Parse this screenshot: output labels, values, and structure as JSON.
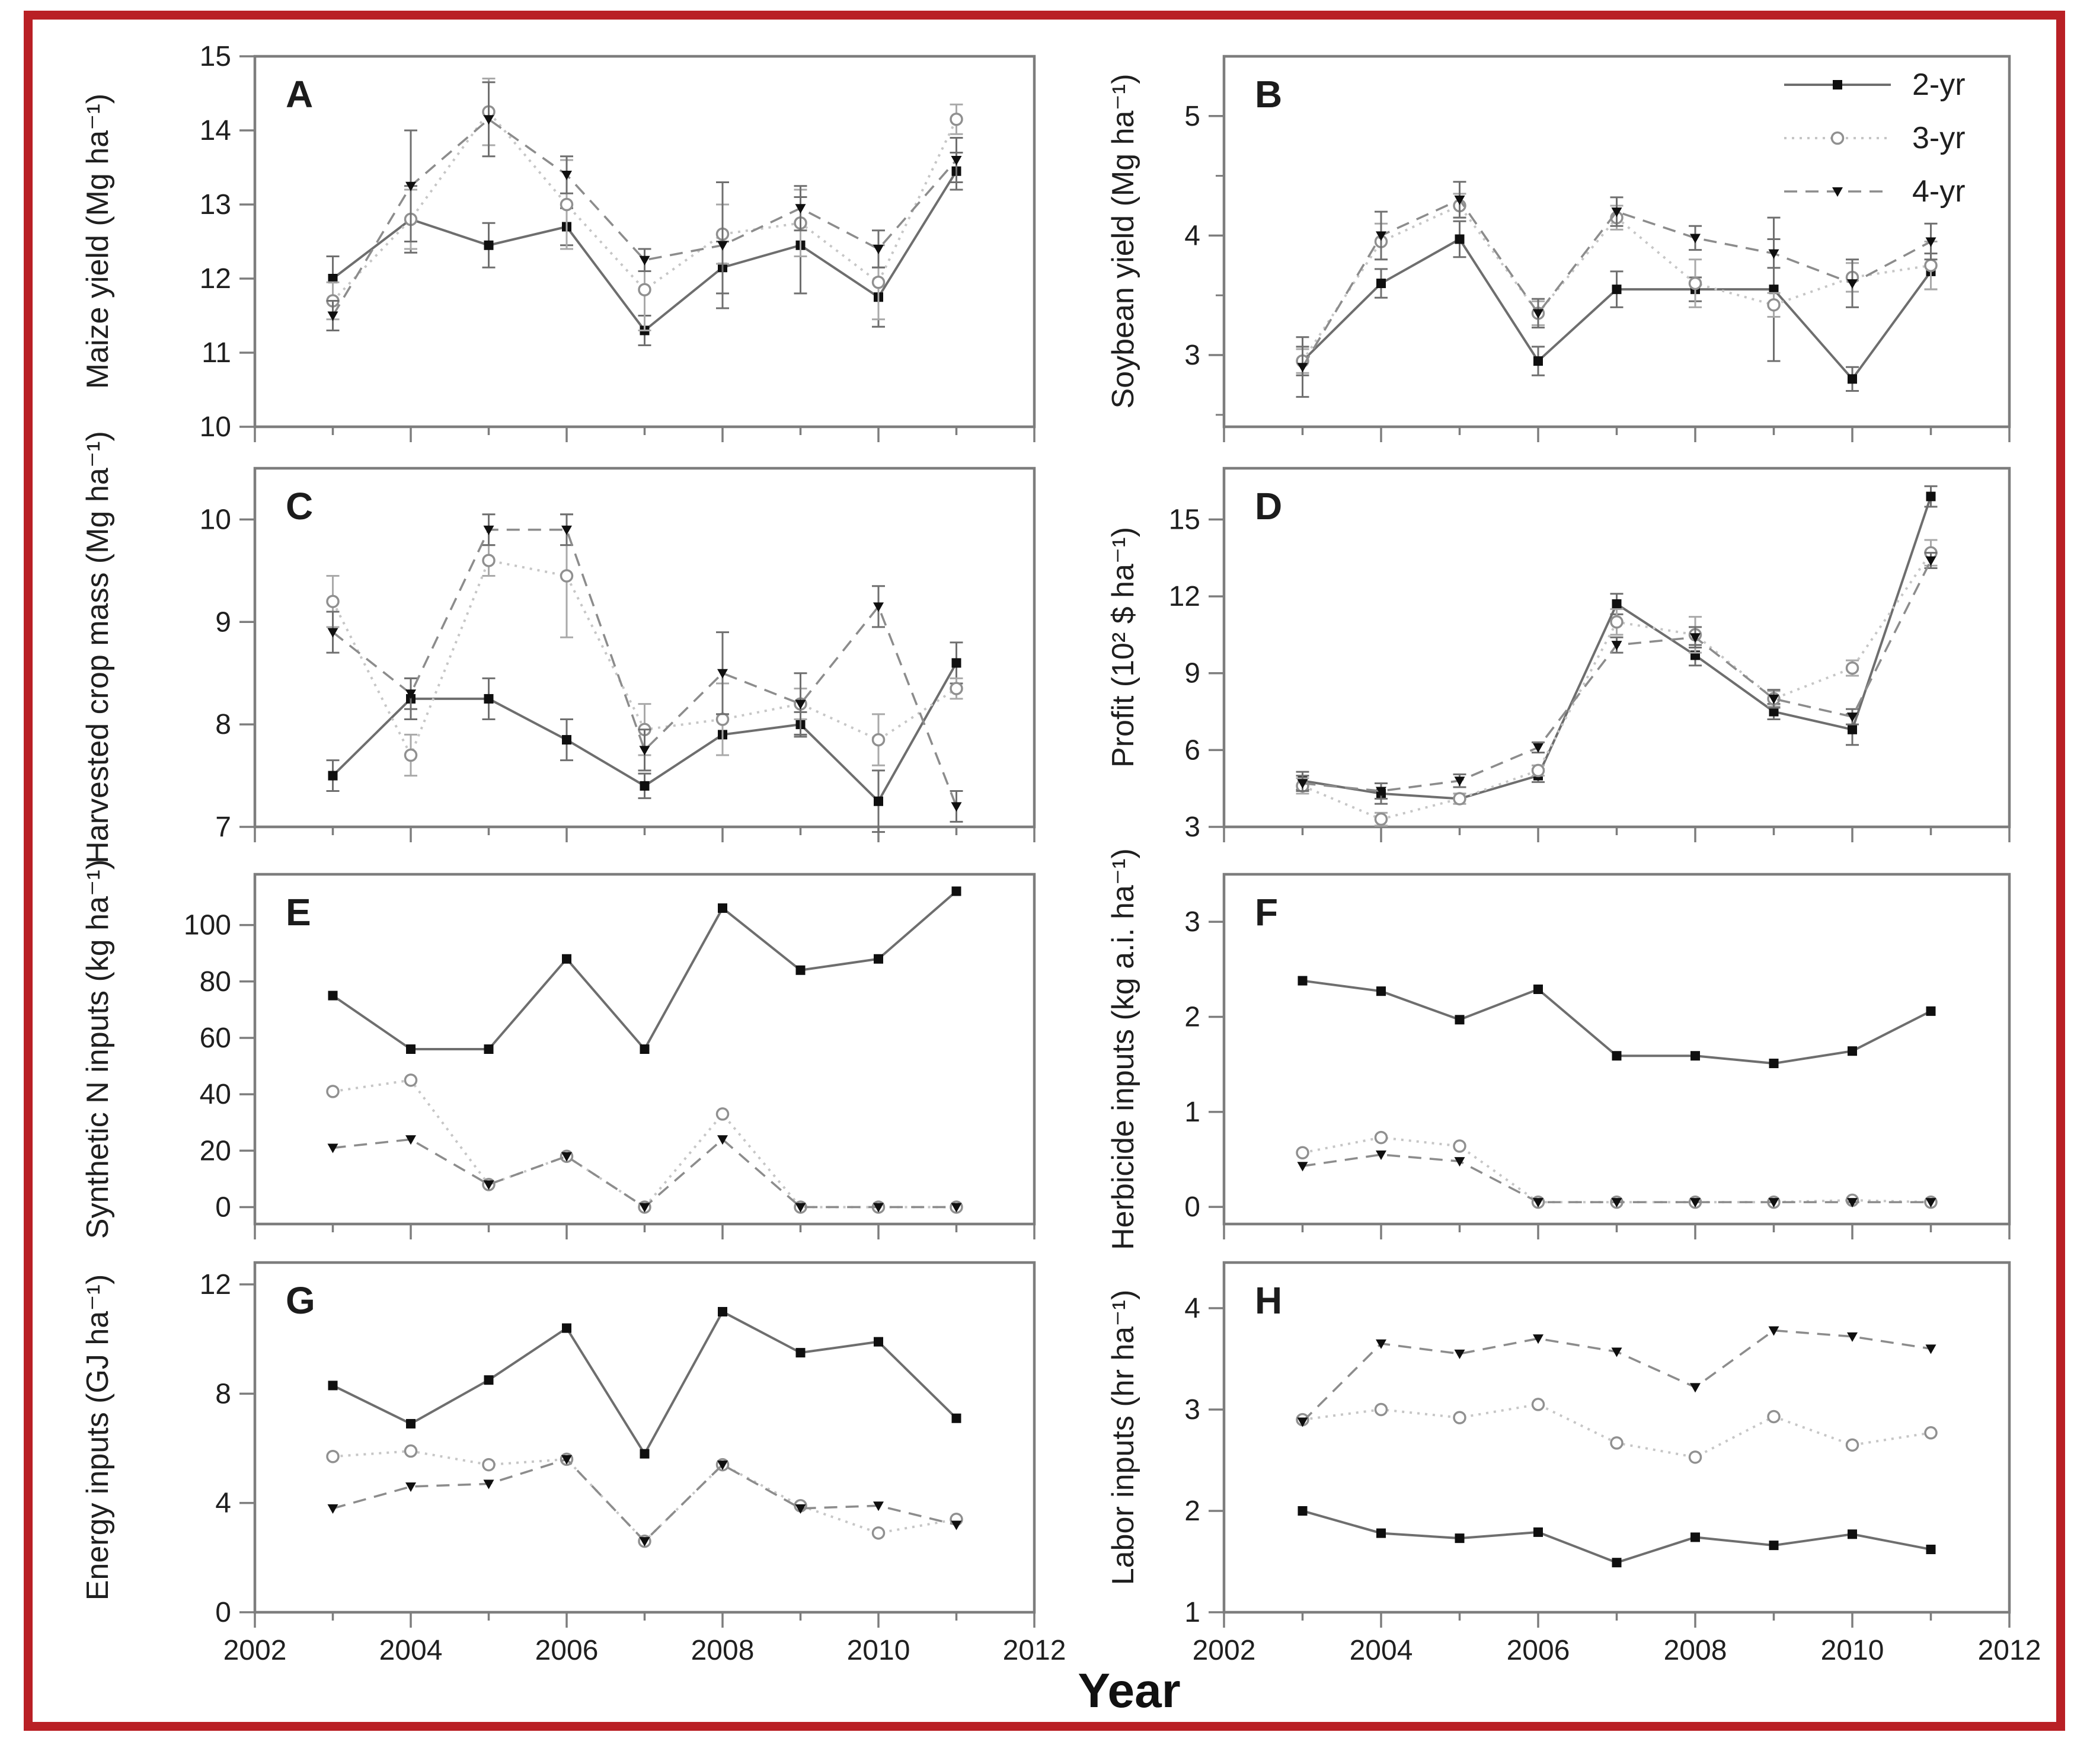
{
  "x_axis": {
    "label": "Year",
    "range": [
      2002,
      2012
    ],
    "major_ticks": [
      2002,
      2004,
      2006,
      2008,
      2010,
      2012
    ],
    "minor_step": 1,
    "tick_labels_under_panels": [
      "G",
      "H"
    ]
  },
  "legend": {
    "location": "panel-B-top-right",
    "entries": [
      {
        "label": "2-yr",
        "marker": "filled-square",
        "line": "solid"
      },
      {
        "label": "3-yr",
        "marker": "open-circle",
        "line": "dotted"
      },
      {
        "label": "4-yr",
        "marker": "filled-triangle",
        "line": "dashed"
      }
    ]
  },
  "colors": {
    "frame": "#b92025",
    "axis": "#7d7d7d",
    "marker": "#0f0f0f",
    "text": "#1f1f1f",
    "line_2yr": "#6e6e6e",
    "line_3yr": "#c6c6c6",
    "line_4yr": "#8c8c8c",
    "errorbar": "#6f6f6f",
    "errorbar_3yr": "#a9a9a9",
    "background": "#ffffff"
  },
  "chart_data": [
    {
      "letter": "A",
      "type": "line",
      "ylabel": "Maize yield (Mg ha⁻¹)",
      "ylim": [
        10,
        15
      ],
      "yticks": [
        10,
        11,
        12,
        13,
        14,
        15
      ],
      "x": [
        2003,
        2004,
        2005,
        2006,
        2007,
        2008,
        2009,
        2010,
        2011
      ],
      "series": [
        {
          "name": "2-yr",
          "values": [
            12.0,
            12.8,
            12.45,
            12.7,
            11.3,
            12.15,
            12.45,
            11.75,
            13.45
          ],
          "err": [
            0.3,
            0.45,
            0.3,
            0.25,
            0.2,
            0.35,
            0.65,
            0.4,
            0.25
          ]
        },
        {
          "name": "3-yr",
          "values": [
            11.7,
            12.8,
            14.25,
            13.0,
            11.85,
            12.6,
            12.75,
            11.95,
            14.15
          ],
          "err": [
            0.25,
            0.4,
            0.45,
            0.6,
            0.55,
            0.4,
            0.45,
            0.5,
            0.2
          ]
        },
        {
          "name": "4-yr",
          "values": [
            11.5,
            13.25,
            14.15,
            13.4,
            12.25,
            12.45,
            12.95,
            12.4,
            13.6
          ],
          "err": [
            0.2,
            0.75,
            0.5,
            0.25,
            0.15,
            0.85,
            0.3,
            0.25,
            0.3
          ]
        }
      ]
    },
    {
      "letter": "B",
      "type": "line",
      "ylabel": "Soybean yield (Mg ha⁻¹)",
      "ylim": [
        2.4,
        5.5
      ],
      "yticks": [
        3,
        4,
        5
      ],
      "yminor": [
        2.5,
        3.5,
        4.5
      ],
      "x": [
        2003,
        2004,
        2005,
        2006,
        2007,
        2008,
        2009,
        2010,
        2011
      ],
      "series": [
        {
          "name": "2-yr",
          "values": [
            2.95,
            3.6,
            3.97,
            2.95,
            3.55,
            3.55,
            3.55,
            2.8,
            3.7
          ],
          "err": [
            0.12,
            0.12,
            0.15,
            0.12,
            0.15,
            0.1,
            0.6,
            0.1,
            0.15
          ]
        },
        {
          "name": "3-yr",
          "values": [
            2.95,
            3.95,
            4.25,
            3.35,
            4.15,
            3.6,
            3.42,
            3.65,
            3.75
          ],
          "err": [
            0.1,
            0.15,
            0.1,
            0.1,
            0.1,
            0.2,
            0.1,
            0.12,
            0.2
          ]
        },
        {
          "name": "4-yr",
          "values": [
            2.9,
            4.0,
            4.3,
            3.35,
            4.2,
            3.98,
            3.85,
            3.6,
            3.95
          ],
          "err": [
            0.25,
            0.2,
            0.15,
            0.12,
            0.12,
            0.1,
            0.12,
            0.2,
            0.15
          ]
        }
      ]
    },
    {
      "letter": "C",
      "type": "line",
      "ylabel": "Harvested crop mass (Mg ha⁻¹)",
      "ylim": [
        7,
        10.5
      ],
      "yticks": [
        7,
        8,
        9,
        10
      ],
      "x": [
        2003,
        2004,
        2005,
        2006,
        2007,
        2008,
        2009,
        2010,
        2011
      ],
      "series": [
        {
          "name": "2-yr",
          "values": [
            7.5,
            8.25,
            8.25,
            7.85,
            7.4,
            7.9,
            8.0,
            7.25,
            8.6
          ],
          "err": [
            0.15,
            0.2,
            0.2,
            0.2,
            0.12,
            0.2,
            0.12,
            0.3,
            0.2
          ]
        },
        {
          "name": "3-yr",
          "values": [
            9.2,
            7.7,
            9.6,
            9.45,
            7.95,
            8.05,
            8.2,
            7.85,
            8.35
          ],
          "err": [
            0.25,
            0.2,
            0.15,
            0.6,
            0.25,
            0.35,
            0.15,
            0.25,
            0.1
          ]
        },
        {
          "name": "4-yr",
          "values": [
            8.9,
            8.3,
            9.9,
            9.9,
            7.75,
            8.5,
            8.2,
            9.15,
            7.2
          ],
          "err": [
            0.2,
            0.15,
            0.15,
            0.15,
            0.2,
            0.4,
            0.3,
            0.2,
            0.15
          ]
        }
      ]
    },
    {
      "letter": "D",
      "type": "line",
      "ylabel": "Profit (10² $ ha⁻¹)",
      "ylim": [
        3,
        17
      ],
      "yticks": [
        3,
        6,
        9,
        12,
        15
      ],
      "x": [
        2003,
        2004,
        2005,
        2006,
        2007,
        2008,
        2009,
        2010,
        2011
      ],
      "series": [
        {
          "name": "2-yr",
          "values": [
            4.8,
            4.3,
            4.1,
            5.0,
            11.7,
            9.7,
            7.5,
            6.8,
            15.9
          ],
          "err": [
            0.35,
            0.4,
            0.2,
            0.25,
            0.4,
            0.4,
            0.3,
            0.6,
            0.4
          ]
        },
        {
          "name": "3-yr",
          "values": [
            4.6,
            3.3,
            4.1,
            5.2,
            11.0,
            10.5,
            8.0,
            9.2,
            13.7
          ],
          "err": [
            0.3,
            0.25,
            0.2,
            0.2,
            0.5,
            0.7,
            0.3,
            0.3,
            0.5
          ]
        },
        {
          "name": "4-yr",
          "values": [
            4.7,
            4.4,
            4.8,
            6.1,
            10.1,
            10.4,
            8.0,
            7.3,
            13.4
          ],
          "err": [
            0.3,
            0.3,
            0.25,
            0.2,
            0.3,
            0.4,
            0.35,
            0.3,
            0.3
          ]
        }
      ]
    },
    {
      "letter": "E",
      "type": "line",
      "ylabel": "Synthetic N inputs (kg ha⁻¹)",
      "ylim": [
        -6,
        118
      ],
      "yticks": [
        0,
        20,
        40,
        60,
        80,
        100
      ],
      "x": [
        2003,
        2004,
        2005,
        2006,
        2007,
        2008,
        2009,
        2010,
        2011
      ],
      "series": [
        {
          "name": "2-yr",
          "values": [
            75,
            56,
            56,
            88,
            56,
            106,
            84,
            88,
            112
          ]
        },
        {
          "name": "3-yr",
          "values": [
            41,
            45,
            8,
            18,
            0,
            33,
            0,
            0,
            0
          ]
        },
        {
          "name": "4-yr",
          "values": [
            21,
            24,
            8,
            18,
            0,
            24,
            0,
            0,
            0
          ]
        }
      ]
    },
    {
      "letter": "F",
      "type": "line",
      "ylabel": "Herbicide inputs (kg a.i. ha⁻¹)",
      "ylim": [
        -0.18,
        3.5
      ],
      "yticks": [
        0,
        1,
        2,
        3
      ],
      "x": [
        2003,
        2004,
        2005,
        2006,
        2007,
        2008,
        2009,
        2010,
        2011
      ],
      "series": [
        {
          "name": "2-yr",
          "values": [
            2.38,
            2.27,
            1.97,
            2.29,
            1.59,
            1.59,
            1.51,
            1.64,
            2.06
          ]
        },
        {
          "name": "3-yr",
          "values": [
            0.57,
            0.73,
            0.64,
            0.05,
            0.05,
            0.05,
            0.05,
            0.07,
            0.05
          ]
        },
        {
          "name": "4-yr",
          "values": [
            0.43,
            0.55,
            0.48,
            0.05,
            0.05,
            0.05,
            0.05,
            0.05,
            0.05
          ]
        }
      ]
    },
    {
      "letter": "G",
      "type": "line",
      "ylabel": "Energy inputs (GJ ha⁻¹)",
      "ylim": [
        0,
        12.8
      ],
      "yticks": [
        0,
        4,
        8,
        12
      ],
      "x": [
        2003,
        2004,
        2005,
        2006,
        2007,
        2008,
        2009,
        2010,
        2011
      ],
      "series": [
        {
          "name": "2-yr",
          "values": [
            8.3,
            6.9,
            8.5,
            10.4,
            5.8,
            11.0,
            9.5,
            9.9,
            7.1
          ]
        },
        {
          "name": "3-yr",
          "values": [
            5.7,
            5.9,
            5.4,
            5.6,
            2.6,
            5.4,
            3.9,
            2.9,
            3.4
          ]
        },
        {
          "name": "4-yr",
          "values": [
            3.8,
            4.6,
            4.7,
            5.6,
            2.6,
            5.4,
            3.8,
            3.9,
            3.2
          ]
        }
      ]
    },
    {
      "letter": "H",
      "type": "line",
      "ylabel": "Labor inputs (hr ha⁻¹)",
      "ylim": [
        1,
        4.45
      ],
      "yticks": [
        1,
        2,
        3,
        4
      ],
      "x": [
        2003,
        2004,
        2005,
        2006,
        2007,
        2008,
        2009,
        2010,
        2011
      ],
      "series": [
        {
          "name": "2-yr",
          "values": [
            2.0,
            1.78,
            1.73,
            1.79,
            1.49,
            1.74,
            1.66,
            1.77,
            1.62
          ]
        },
        {
          "name": "3-yr",
          "values": [
            2.9,
            3.0,
            2.92,
            3.05,
            2.67,
            2.53,
            2.93,
            2.65,
            2.77
          ]
        },
        {
          "name": "4-yr",
          "values": [
            2.88,
            3.65,
            3.55,
            3.7,
            3.57,
            3.22,
            3.78,
            3.72,
            3.6
          ]
        }
      ]
    }
  ]
}
